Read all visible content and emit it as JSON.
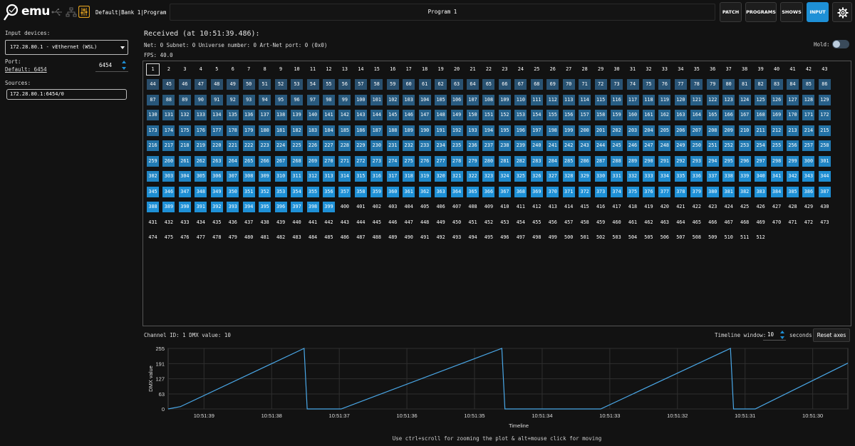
{
  "header": {
    "logo_text": "emu",
    "breadcrumb": "Default|Bank 1|Program 1",
    "program_title": "Program 1",
    "nav": [
      {
        "label": "PATCH",
        "active": false
      },
      {
        "label": "PROGRAMS",
        "active": false
      },
      {
        "label": "SHOWS",
        "active": false
      },
      {
        "label": "INPUT",
        "active": true
      }
    ],
    "icons": [
      "usb-icon",
      "network-icon",
      "mixer-icon",
      "gear-icon"
    ]
  },
  "left_panel": {
    "input_devices_label": "Input devices:",
    "device_selected": "172.28.80.1 - vEthernet (WSL)",
    "port_label": "Port:",
    "port_default": "Default: 6454",
    "port_value": "6454",
    "sources_label": "Sources:",
    "source_value": "172.28.80.1:6454/0"
  },
  "main": {
    "received_title": "Received (at 10:51:39.486):",
    "net_info": "Net: 0 Subnet: 0 Universe number: 0 Art-Net port: 0 (0x0)",
    "fps_info": "FPS: 40.0",
    "hold_label": "Hold:",
    "hold_on": false,
    "channel_count": 512,
    "selected_channel": 1,
    "active_range": [
      44,
      399
    ],
    "colors": {
      "active_bright": "#1e90d6",
      "active_dim": "#2a4d6a",
      "background": "#121212"
    }
  },
  "bottom": {
    "channel_info": "Channel ID: 1 DMX value: 10",
    "timeline_label": "Timeline window:",
    "timeline_value": "10",
    "timeline_unit": "seconds",
    "reset_label": "Reset axes",
    "hint": "Use ctrl+scroll for zooming the plot & alt+mouse click for moving"
  },
  "chart_data": {
    "type": "line",
    "xlabel": "Timeline",
    "ylabel": "DMX value",
    "ylim": [
      0,
      255
    ],
    "yticks": [
      0,
      63,
      127,
      191,
      255
    ],
    "xtick_labels": [
      "10:51:39",
      "10:51:38",
      "10:51:37",
      "10:51:36",
      "10:51:35",
      "10:51:34",
      "10:51:33",
      "10:51:32",
      "10:51:31",
      "10:51:30"
    ],
    "x_direction": "time decreasing left to right",
    "line_color": "#4aa8e8",
    "series": [
      {
        "points": [
          [
            0.0,
            0
          ],
          [
            0.2,
            10
          ],
          [
            2.2,
            255
          ],
          [
            2.25,
            0
          ],
          [
            2.8,
            0
          ],
          [
            5.4,
            255
          ],
          [
            5.45,
            0
          ],
          [
            7.0,
            0
          ],
          [
            9.1,
            255
          ],
          [
            9.15,
            0
          ],
          [
            9.5,
            0
          ],
          [
            11.0,
            193
          ]
        ]
      }
    ]
  }
}
